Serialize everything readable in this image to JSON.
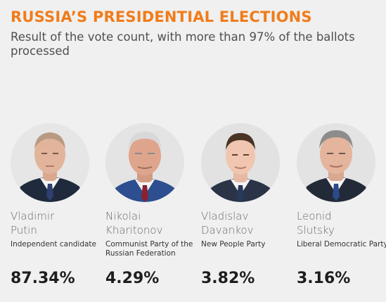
{
  "header": {
    "title": "RUSSIA’S PRESIDENTIAL ELECTIONS",
    "subtitle": "Result of the vote count, with more than 97% of the ballots processed"
  },
  "colors": {
    "title": "#f07c1a",
    "background": "#f0f0f0"
  },
  "candidates": [
    {
      "first_name": "Vladimir",
      "last_name": "Putin",
      "party": "Independent candidate",
      "result": "87.34%",
      "photo_icon": "candidate-portrait-icon"
    },
    {
      "first_name": "Nikolai",
      "last_name": "Kharitonov",
      "party": "Communist Party of the Russian Federation",
      "result": "4.29%",
      "photo_icon": "candidate-portrait-icon"
    },
    {
      "first_name": "Vladislav",
      "last_name": "Davankov",
      "party": "New People Party",
      "result": "3.82%",
      "photo_icon": "candidate-portrait-icon"
    },
    {
      "first_name": "Leonid",
      "last_name": "Slutsky",
      "party": "Liberal Democratic Party",
      "result": "3.16%",
      "photo_icon": "candidate-portrait-icon"
    }
  ]
}
